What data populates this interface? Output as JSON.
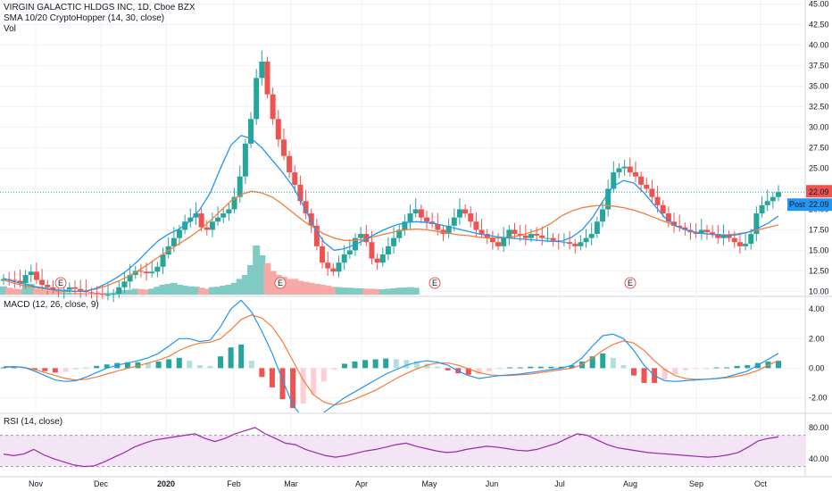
{
  "header": {
    "symbol_line": "VIRGIN GALACTIC HLDGS INC, 1D, Cboe BZX",
    "sma_line": "SMA 10/20 CryptoHopper (14, 30, close)",
    "vol_line": "Vol"
  },
  "macd_legend": "MACD (12, 26, close, 9)",
  "rsi_legend": "RSI (14, close)",
  "last_price_label": "22.09",
  "post_badge": {
    "tag": "Post",
    "value": "22.09"
  },
  "earnings_marker": "E",
  "colors": {
    "up": "#26a69a",
    "down": "#ef5350",
    "sma_fast": "#2196f3",
    "sma_slow": "#f57c3a",
    "macd_line": "#2196f3",
    "signal_line": "#f57c3a",
    "rsi_line": "#9c27b0",
    "rsi_band": "#f3e5f5"
  },
  "chart_data": [
    {
      "type": "candlestick",
      "title": "VIRGIN GALACTIC HLDGS INC, 1D, Cboe BZX",
      "x_ticks": [
        "Nov",
        "Dec",
        "2020",
        "Feb",
        "Mar",
        "Apr",
        "May",
        "Jun",
        "Jul",
        "Aug",
        "Sep",
        "Oct"
      ],
      "y_ticks": [
        "10.00",
        "12.50",
        "15.00",
        "17.50",
        "20.00",
        "22.50",
        "25.00",
        "27.50",
        "30.00",
        "32.50",
        "35.00",
        "37.50",
        "40.00",
        "42.50",
        "45.00"
      ],
      "ylim": [
        9.5,
        45.5
      ],
      "last_price": 22.09,
      "series": [
        {
          "name": "Price",
          "values": [
            11.5,
            11.4,
            11.3,
            11.0,
            12.0,
            12.4,
            11.4,
            10.8,
            10.5,
            10.2,
            10.0,
            10.2,
            10.5,
            10.3,
            10.1,
            9.9,
            9.8,
            9.7,
            9.6,
            9.6,
            9.7,
            10.5,
            11.2,
            12.0,
            12.5,
            12.4,
            12.2,
            12.4,
            13.0,
            14.5,
            15.5,
            16.5,
            17.5,
            18.5,
            19.0,
            19.5,
            17.8,
            17.5,
            18.5,
            19.0,
            19.5,
            20.0,
            21.5,
            24.0,
            28.0,
            31.0,
            36.0,
            38.0,
            34.0,
            31.0,
            28.5,
            26.5,
            24.5,
            23.0,
            21.0,
            19.5,
            18.0,
            15.5,
            13.5,
            12.8,
            12.4,
            13.5,
            14.5,
            15.0,
            16.5,
            17.0,
            16.0,
            14.0,
            13.5,
            14.5,
            15.5,
            16.5,
            17.5,
            18.5,
            19.5,
            20.0,
            19.0,
            18.5,
            18.2,
            17.5,
            17.0,
            18.0,
            19.0,
            20.0,
            19.5,
            18.5,
            17.5,
            17.0,
            16.5,
            16.0,
            15.5,
            16.5,
            17.5,
            17.0,
            16.8,
            16.5,
            17.0,
            16.8,
            16.5,
            16.5,
            16.2,
            16.0,
            16.0,
            15.8,
            15.5,
            16.0,
            16.5,
            17.0,
            18.5,
            20.0,
            22.5,
            24.5,
            25.0,
            25.2,
            24.5,
            24.0,
            23.0,
            22.5,
            21.5,
            20.5,
            19.5,
            18.5,
            18.0,
            17.8,
            17.5,
            17.2,
            17.0,
            17.5,
            17.2,
            17.0,
            16.5,
            16.8,
            16.5,
            16.0,
            15.5,
            15.8,
            17.0,
            19.5,
            20.5,
            21.0,
            21.5,
            22.09
          ]
        },
        {
          "name": "SMA 14",
          "values": [
            11.6,
            11.2,
            10.9,
            10.6,
            10.4,
            10.2,
            10.1,
            10.0,
            10.0,
            10.4,
            11.0,
            11.7,
            12.6,
            13.7,
            15.0,
            16.2,
            17.0,
            17.6,
            18.5,
            20.0,
            22.0,
            25.0,
            27.8,
            29.0,
            28.6,
            27.5,
            26.0,
            24.5,
            22.8,
            20.5,
            18.0,
            16.0,
            15.0,
            15.2,
            15.7,
            16.3,
            17.0,
            17.6,
            18.1,
            18.4,
            18.5,
            18.4,
            18.2,
            17.9,
            17.6,
            17.3,
            17.0,
            16.8,
            16.6,
            16.5,
            16.4,
            16.3,
            16.2,
            16.1,
            16.1,
            16.6,
            17.5,
            19.0,
            21.0,
            22.8,
            23.5,
            23.2,
            22.0,
            20.5,
            19.0,
            18.0,
            17.5,
            17.2,
            17.0,
            16.9,
            16.8,
            16.9,
            17.2,
            17.7,
            18.3,
            19.2
          ]
        },
        {
          "name": "SMA 30",
          "values": [
            11.4,
            11.0,
            10.7,
            10.5,
            10.3,
            10.1,
            10.0,
            10.0,
            10.1,
            10.3,
            10.7,
            11.2,
            11.8,
            12.5,
            13.3,
            14.2,
            15.0,
            15.8,
            16.6,
            17.5,
            18.6,
            19.8,
            21.0,
            21.8,
            22.2,
            22.0,
            21.5,
            20.6,
            19.6,
            18.6,
            17.8,
            17.0,
            16.5,
            16.2,
            16.2,
            16.4,
            16.7,
            17.0,
            17.3,
            17.5,
            17.6,
            17.5,
            17.3,
            17.1,
            16.9,
            16.8,
            16.6,
            16.5,
            16.5,
            16.6,
            16.8,
            17.2,
            17.6,
            18.3,
            19.2,
            19.8,
            20.2,
            20.4,
            20.5,
            20.4,
            20.2,
            19.9,
            19.5,
            19.0,
            18.5,
            18.0,
            17.5,
            17.2,
            17.0,
            16.9,
            16.9,
            17.0,
            17.2,
            17.5,
            17.8,
            18.1
          ]
        }
      ]
    },
    {
      "type": "bar",
      "title": "Vol",
      "note": "volume histogram, relative scale",
      "values": [
        0.42,
        0.35,
        0.3,
        0.28,
        0.5,
        0.55,
        0.3,
        0.25,
        0.2,
        0.18,
        0.15,
        0.12,
        0.1,
        0.1,
        0.09,
        0.08,
        0.08,
        0.08,
        0.08,
        0.09,
        0.1,
        0.18,
        0.22,
        0.25,
        0.3,
        0.28,
        0.26,
        0.3,
        0.4,
        0.5,
        0.55,
        0.6,
        0.5,
        0.45,
        0.42,
        0.4,
        0.35,
        0.3,
        0.38,
        0.4,
        0.45,
        0.5,
        0.6,
        0.8,
        1.0,
        1.5,
        2.5,
        2.0,
        1.6,
        1.2,
        1.0,
        0.9,
        0.8,
        0.8,
        0.7,
        0.65,
        0.6,
        0.55,
        0.5,
        0.45,
        0.4,
        0.38,
        0.36,
        0.35,
        0.33,
        0.32,
        0.3,
        0.3,
        0.28,
        0.27,
        0.3,
        0.32,
        0.35,
        0.36,
        0.38,
        0.35
      ]
    },
    {
      "type": "line",
      "title": "MACD (12, 26, close, 9)",
      "y_ticks": [
        "4.00",
        "2.00",
        "0.00",
        "-2.00"
      ],
      "ylim": [
        -3.0,
        4.8
      ],
      "series": [
        {
          "name": "MACD",
          "values": [
            0.05,
            0.1,
            0.05,
            -0.2,
            -0.5,
            -0.8,
            -0.9,
            -0.85,
            -0.6,
            -0.3,
            0.0,
            0.2,
            0.35,
            0.5,
            0.7,
            1.0,
            1.5,
            2.0,
            2.0,
            1.8,
            1.9,
            2.8,
            4.0,
            4.6,
            3.8,
            2.5,
            1.0,
            -0.8,
            -2.5,
            -3.4,
            -3.5,
            -3.0,
            -2.5,
            -2.0,
            -1.6,
            -1.2,
            -0.8,
            -0.4,
            -0.1,
            0.2,
            0.4,
            0.5,
            0.4,
            0.2,
            -0.2,
            -0.5,
            -0.7,
            -0.6,
            -0.5,
            -0.45,
            -0.4,
            -0.3,
            -0.2,
            -0.1,
            0.0,
            0.2,
            0.7,
            1.5,
            2.2,
            2.3,
            2.0,
            1.2,
            0.2,
            -0.5,
            -0.85,
            -0.9,
            -0.85,
            -0.8,
            -0.75,
            -0.7,
            -0.6,
            -0.4,
            -0.2,
            0.2,
            0.6,
            1.0
          ]
        },
        {
          "name": "Signal",
          "values": [
            0.1,
            0.1,
            0.05,
            -0.1,
            -0.3,
            -0.5,
            -0.7,
            -0.8,
            -0.75,
            -0.6,
            -0.4,
            -0.2,
            0.0,
            0.15,
            0.35,
            0.55,
            0.8,
            1.2,
            1.5,
            1.7,
            1.75,
            2.0,
            2.6,
            3.3,
            3.6,
            3.4,
            2.8,
            1.8,
            0.5,
            -0.8,
            -1.8,
            -2.3,
            -2.5,
            -2.35,
            -2.1,
            -1.8,
            -1.5,
            -1.1,
            -0.7,
            -0.35,
            -0.05,
            0.2,
            0.35,
            0.35,
            0.2,
            -0.05,
            -0.3,
            -0.45,
            -0.5,
            -0.5,
            -0.45,
            -0.4,
            -0.3,
            -0.2,
            -0.1,
            0.0,
            0.25,
            0.7,
            1.2,
            1.6,
            1.85,
            1.7,
            1.2,
            0.5,
            -0.1,
            -0.5,
            -0.7,
            -0.75,
            -0.75,
            -0.7,
            -0.65,
            -0.55,
            -0.4,
            -0.15,
            0.2,
            0.5
          ]
        },
        {
          "name": "Histogram",
          "values": [
            0.05,
            0.1,
            -0.02,
            -0.1,
            -0.2,
            -0.3,
            -0.25,
            -0.1,
            0.05,
            0.15,
            0.25,
            0.35,
            0.4,
            0.4,
            0.38,
            0.45,
            0.6,
            0.7,
            0.5,
            0.2,
            0.15,
            0.8,
            1.4,
            1.6,
            0.5,
            -0.6,
            -1.3,
            -2.1,
            -2.7,
            -2.4,
            -1.8,
            -0.9,
            -0.1,
            0.3,
            0.45,
            0.55,
            0.6,
            0.65,
            0.6,
            0.55,
            0.45,
            0.3,
            0.1,
            -0.15,
            -0.35,
            -0.45,
            -0.4,
            -0.2,
            0.0,
            0.05,
            0.05,
            0.1,
            0.1,
            0.1,
            0.1,
            0.2,
            0.45,
            0.8,
            1.0,
            0.7,
            0.2,
            -0.5,
            -1.0,
            -1.0,
            -0.75,
            -0.4,
            -0.15,
            -0.05,
            0.0,
            0.05,
            0.05,
            0.15,
            0.2,
            0.35,
            0.45,
            0.5
          ]
        }
      ]
    },
    {
      "type": "line",
      "title": "RSI (14, close)",
      "y_ticks": [
        "80.00",
        "40.00"
      ],
      "ylim": [
        17,
        97
      ],
      "series": [
        {
          "name": "RSI",
          "values": [
            46,
            44,
            46,
            52,
            45,
            40,
            36,
            32,
            30,
            31,
            36,
            42,
            48,
            55,
            60,
            64,
            66,
            68,
            70,
            72,
            66,
            62,
            66,
            72,
            76,
            80,
            72,
            66,
            60,
            58,
            52,
            48,
            44,
            42,
            44,
            47,
            50,
            52,
            55,
            58,
            60,
            56,
            53,
            50,
            48,
            49,
            52,
            54,
            56,
            55,
            53,
            51,
            50,
            52,
            56,
            60,
            66,
            72,
            70,
            64,
            58,
            54,
            52,
            50,
            48,
            47,
            46,
            45,
            44,
            43,
            42,
            43,
            45,
            48,
            55,
            63,
            66,
            68
          ]
        }
      ]
    }
  ]
}
